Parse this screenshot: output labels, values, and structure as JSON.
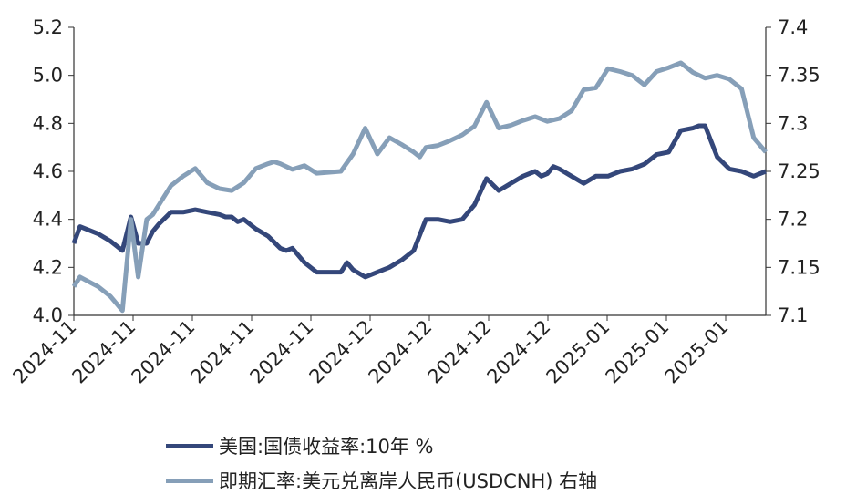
{
  "chart_data": {
    "type": "line",
    "title": "",
    "xlabel": "",
    "ylabel": "",
    "x_tick_labels": [
      "2024-11",
      "2024-11",
      "2024-11",
      "2024-11",
      "2024-11",
      "2024-12",
      "2024-12",
      "2024-12",
      "2024-12",
      "2025-01",
      "2025-01",
      "2025-01"
    ],
    "y_left": {
      "ticks": [
        "4.0",
        "4.2",
        "4.4",
        "4.6",
        "4.8",
        "5.0",
        "5.2"
      ],
      "ylim": [
        4.0,
        5.2
      ]
    },
    "y_right": {
      "ticks": [
        "7.1",
        "7.15",
        "7.2",
        "7.25",
        "7.3",
        "7.35",
        "7.4"
      ],
      "ylim": [
        7.1,
        7.4
      ]
    },
    "x_range": [
      0,
      57
    ],
    "series": [
      {
        "name": "美国:国债收益率:10年 %",
        "axis": "left",
        "color": "#34477a",
        "x": [
          0,
          0.5,
          2,
          3,
          4,
          4.7,
          5.3,
          6,
          6.5,
          7,
          8,
          9,
          10,
          11,
          12,
          12.5,
          13,
          13.5,
          14,
          15,
          16,
          17,
          17.5,
          18,
          18.5,
          19,
          20,
          22,
          22.5,
          23,
          24,
          25,
          26,
          27,
          28,
          29,
          30,
          31,
          32,
          33,
          34,
          35,
          36,
          37,
          38,
          38.5,
          39,
          39.5,
          40,
          41,
          42,
          43,
          44,
          45,
          46,
          47,
          48,
          49,
          50,
          51,
          51.5,
          52,
          53,
          54,
          55,
          56,
          57
        ],
        "values": [
          4.3,
          4.37,
          4.34,
          4.31,
          4.27,
          4.41,
          4.3,
          4.3,
          4.35,
          4.38,
          4.43,
          4.43,
          4.44,
          4.43,
          4.42,
          4.41,
          4.41,
          4.39,
          4.4,
          4.36,
          4.33,
          4.28,
          4.27,
          4.28,
          4.25,
          4.22,
          4.18,
          4.18,
          4.22,
          4.19,
          4.16,
          4.18,
          4.2,
          4.23,
          4.27,
          4.4,
          4.4,
          4.39,
          4.4,
          4.46,
          4.57,
          4.52,
          4.55,
          4.58,
          4.6,
          4.58,
          4.59,
          4.62,
          4.61,
          4.58,
          4.55,
          4.58,
          4.58,
          4.6,
          4.61,
          4.63,
          4.67,
          4.68,
          4.77,
          4.78,
          4.79,
          4.79,
          4.66,
          4.61,
          4.6,
          4.58,
          4.6
        ]
      },
      {
        "name": "即期汇率:美元兑离岸人民币(USDCNH) 右轴",
        "axis": "right",
        "color": "#869fb8",
        "x": [
          0,
          0.5,
          2,
          3,
          4,
          4.7,
          5.3,
          6,
          6.5,
          8,
          9,
          10,
          11,
          12,
          13,
          14,
          15,
          16,
          16.5,
          17,
          18,
          19,
          20,
          22,
          23,
          24,
          25,
          26,
          27,
          28,
          28.5,
          29,
          30,
          31,
          32,
          33,
          34,
          35,
          36,
          37,
          38,
          39,
          40,
          41,
          42,
          43,
          44,
          45,
          46,
          47,
          48,
          49,
          50,
          51,
          52,
          53,
          54,
          55,
          56,
          57
        ],
        "values": [
          7.13,
          7.14,
          7.13,
          7.12,
          7.105,
          7.2,
          7.14,
          7.2,
          7.205,
          7.235,
          7.245,
          7.253,
          7.238,
          7.232,
          7.23,
          7.238,
          7.253,
          7.258,
          7.26,
          7.258,
          7.252,
          7.256,
          7.248,
          7.25,
          7.268,
          7.295,
          7.268,
          7.285,
          7.278,
          7.27,
          7.265,
          7.275,
          7.277,
          7.282,
          7.288,
          7.297,
          7.322,
          7.295,
          7.298,
          7.303,
          7.307,
          7.302,
          7.305,
          7.313,
          7.335,
          7.337,
          7.357,
          7.354,
          7.35,
          7.34,
          7.354,
          7.358,
          7.363,
          7.353,
          7.347,
          7.35,
          7.346,
          7.336,
          7.285,
          7.27
        ]
      }
    ],
    "grid": false,
    "legend_position": "bottom"
  }
}
